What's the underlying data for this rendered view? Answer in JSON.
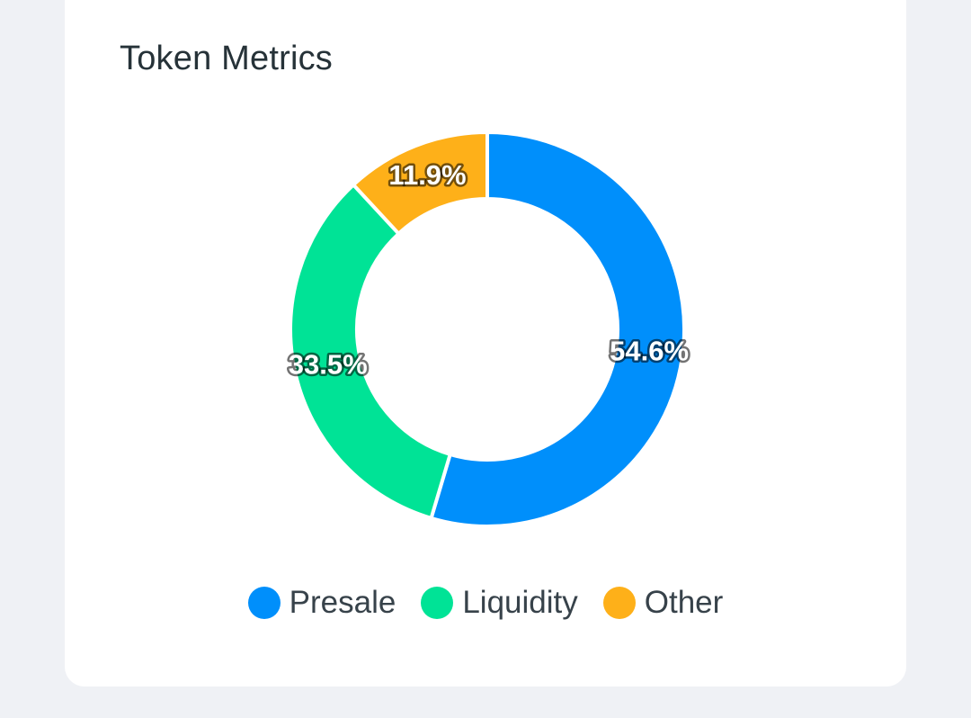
{
  "card": {
    "title": "Token Metrics"
  },
  "chart_data": {
    "type": "pie",
    "donut": true,
    "categories": [
      "Presale",
      "Liquidity",
      "Other"
    ],
    "values": [
      54.6,
      33.5,
      11.9
    ],
    "labels": [
      "54.6%",
      "33.5%",
      "11.9%"
    ],
    "colors": [
      "#008ffb",
      "#00e396",
      "#feb019"
    ],
    "title": "Token Metrics",
    "legend_position": "bottom"
  }
}
